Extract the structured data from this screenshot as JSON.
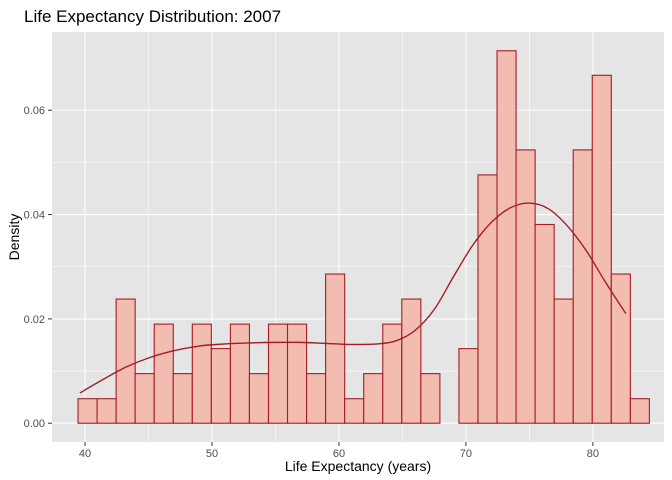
{
  "chart_data": {
    "type": "bar",
    "title": "Life Expectancy Distribution: 2007",
    "xlabel": "Life Expectancy (years)",
    "ylabel": "Density",
    "xlim": [
      37.4,
      85.6
    ],
    "ylim": [
      -0.0036,
      0.075
    ],
    "x_ticks": [
      40,
      50,
      60,
      70,
      80
    ],
    "y_ticks": [
      0.0,
      0.02,
      0.04,
      0.06
    ],
    "y_tick_labels": [
      "0.00",
      "0.02",
      "0.04",
      "0.06"
    ],
    "bin_width": 1.5,
    "bins": [
      {
        "x": 40.2,
        "density": 0.0047
      },
      {
        "x": 41.7,
        "density": 0.0047
      },
      {
        "x": 43.2,
        "density": 0.0238
      },
      {
        "x": 44.7,
        "density": 0.0095
      },
      {
        "x": 46.2,
        "density": 0.019
      },
      {
        "x": 47.7,
        "density": 0.0095
      },
      {
        "x": 49.2,
        "density": 0.019
      },
      {
        "x": 50.7,
        "density": 0.0143
      },
      {
        "x": 52.2,
        "density": 0.019
      },
      {
        "x": 53.7,
        "density": 0.0095
      },
      {
        "x": 55.2,
        "density": 0.019
      },
      {
        "x": 56.7,
        "density": 0.019
      },
      {
        "x": 58.2,
        "density": 0.0095
      },
      {
        "x": 59.7,
        "density": 0.0286
      },
      {
        "x": 61.2,
        "density": 0.0047
      },
      {
        "x": 62.7,
        "density": 0.0095
      },
      {
        "x": 64.2,
        "density": 0.019
      },
      {
        "x": 65.7,
        "density": 0.0238
      },
      {
        "x": 67.2,
        "density": 0.0095
      },
      {
        "x": 68.7,
        "density": 0.0
      },
      {
        "x": 70.2,
        "density": 0.0143
      },
      {
        "x": 71.7,
        "density": 0.0476
      },
      {
        "x": 73.2,
        "density": 0.0714
      },
      {
        "x": 74.7,
        "density": 0.0524
      },
      {
        "x": 76.2,
        "density": 0.0381
      },
      {
        "x": 77.7,
        "density": 0.0238
      },
      {
        "x": 79.2,
        "density": 0.0524
      },
      {
        "x": 80.7,
        "density": 0.0667
      },
      {
        "x": 82.2,
        "density": 0.0286
      },
      {
        "x": 83.7,
        "density": 0.0047
      }
    ],
    "density_curve": {
      "x": [
        39.6,
        41,
        43,
        45,
        47,
        49,
        51,
        53,
        55,
        57,
        59,
        61,
        63,
        64.5,
        66,
        67.5,
        69,
        70.5,
        72,
        73.5,
        75,
        76.5,
        78,
        79.5,
        81,
        82.6
      ],
      "y": [
        0.0058,
        0.0078,
        0.0105,
        0.0125,
        0.0139,
        0.0148,
        0.0152,
        0.0154,
        0.0155,
        0.0155,
        0.0153,
        0.0151,
        0.0152,
        0.0158,
        0.0178,
        0.0218,
        0.028,
        0.034,
        0.0385,
        0.0413,
        0.0422,
        0.0411,
        0.0378,
        0.033,
        0.027,
        0.021
      ]
    },
    "grid": true,
    "colors": {
      "panel_background": "#e5e5e5",
      "grid_line": "#ffffff",
      "bar_fill": "#f2bdb0",
      "bar_stroke": "#a51c24",
      "curve": "#a51c24"
    }
  }
}
